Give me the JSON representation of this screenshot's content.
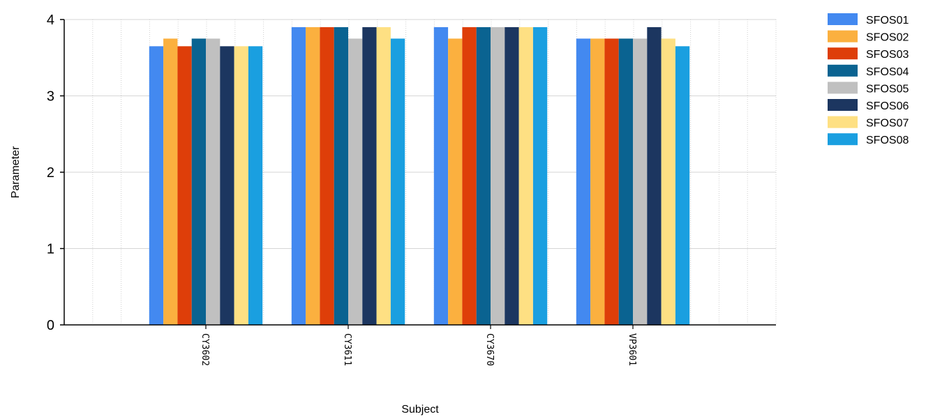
{
  "chart_data": {
    "type": "bar",
    "xlabel": "Subject",
    "ylabel": "Parameter",
    "ylim": [
      0,
      4
    ],
    "yticks": [
      "0",
      "1",
      "2",
      "3",
      "4"
    ],
    "grid": true,
    "legend_position": "top-right",
    "categories": [
      "CY3602",
      "CY3611",
      "CY3670",
      "VP3601"
    ],
    "series": [
      {
        "name": "SFOS01",
        "color": "#4389F0",
        "values": [
          3.65,
          3.9,
          3.9,
          3.75
        ]
      },
      {
        "name": "SFOS02",
        "color": "#FBB03F",
        "values": [
          3.75,
          3.9,
          3.75,
          3.75
        ]
      },
      {
        "name": "SFOS03",
        "color": "#DE3E09",
        "values": [
          3.65,
          3.9,
          3.9,
          3.75
        ]
      },
      {
        "name": "SFOS04",
        "color": "#0A6391",
        "values": [
          3.75,
          3.9,
          3.9,
          3.75
        ]
      },
      {
        "name": "SFOS05",
        "color": "#C0C0C0",
        "values": [
          3.75,
          3.75,
          3.9,
          3.75
        ]
      },
      {
        "name": "SFOS06",
        "color": "#1C3660",
        "values": [
          3.65,
          3.9,
          3.9,
          3.9
        ]
      },
      {
        "name": "SFOS07",
        "color": "#FEE083",
        "values": [
          3.65,
          3.9,
          3.9,
          3.75
        ]
      },
      {
        "name": "SFOS08",
        "color": "#1A9FE0",
        "values": [
          3.65,
          3.75,
          3.9,
          3.65
        ]
      }
    ]
  }
}
